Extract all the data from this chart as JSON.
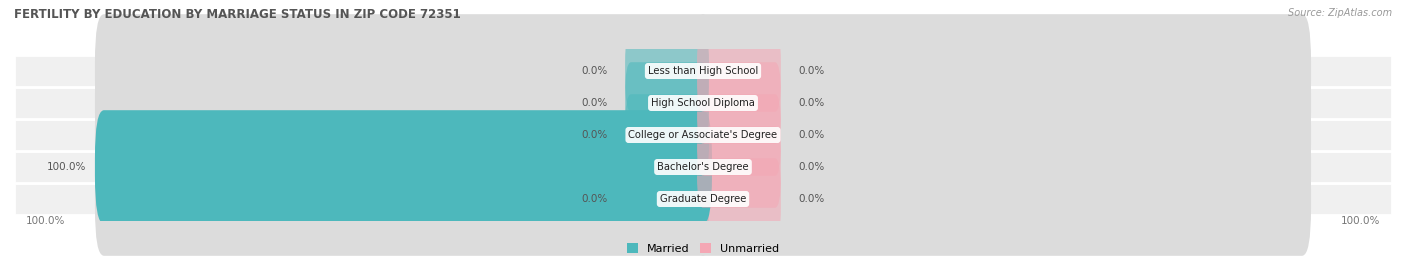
{
  "title": "FERTILITY BY EDUCATION BY MARRIAGE STATUS IN ZIP CODE 72351",
  "source": "Source: ZipAtlas.com",
  "categories": [
    "Less than High School",
    "High School Diploma",
    "College or Associate's Degree",
    "Bachelor's Degree",
    "Graduate Degree"
  ],
  "married_values": [
    0.0,
    0.0,
    0.0,
    100.0,
    0.0
  ],
  "unmarried_values": [
    0.0,
    0.0,
    0.0,
    0.0,
    0.0
  ],
  "married_color": "#4db8bc",
  "unmarried_color": "#f4a7b4",
  "bar_bg_color": "#dcdcdc",
  "row_bg_color": "#f0f0f0",
  "title_color": "#555555",
  "value_color": "#555555",
  "max_value": 100.0,
  "figsize": [
    14.06,
    2.7
  ],
  "dpi": 100
}
